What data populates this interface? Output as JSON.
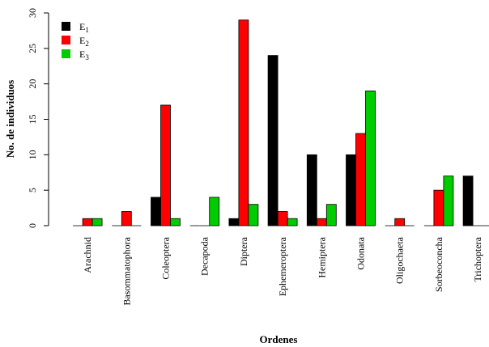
{
  "chart_data": {
    "type": "bar",
    "title": "",
    "xlabel": "Ordenes",
    "ylabel": "No. de individuos",
    "ylim": [
      0,
      30
    ],
    "yticks": [
      0,
      5,
      10,
      15,
      20,
      25,
      30
    ],
    "grid": false,
    "legend_position": "top-left",
    "categories": [
      "Arachnid",
      "Basommatophora",
      "Coleoptera",
      "Decapoda",
      "Diptera",
      "Ephemeroptera",
      "Hemiptera",
      "Odonata",
      "Oligochaeta",
      "Sorbeoconcha",
      "Trichoptera"
    ],
    "series": [
      {
        "name": "E1",
        "name_base": "E",
        "name_sub": "1",
        "color": "#000000",
        "values": [
          0,
          0,
          4,
          0,
          1,
          24,
          10,
          10,
          0,
          0,
          7
        ]
      },
      {
        "name": "E2",
        "name_base": "E",
        "name_sub": "2",
        "color": "#ff0000",
        "values": [
          1,
          2,
          17,
          0,
          29,
          2,
          1,
          13,
          1,
          5,
          0
        ]
      },
      {
        "name": "E3",
        "name_base": "E",
        "name_sub": "3",
        "color": "#00cc00",
        "values": [
          1,
          0,
          1,
          4,
          3,
          1,
          3,
          19,
          0,
          7,
          0
        ]
      }
    ]
  }
}
